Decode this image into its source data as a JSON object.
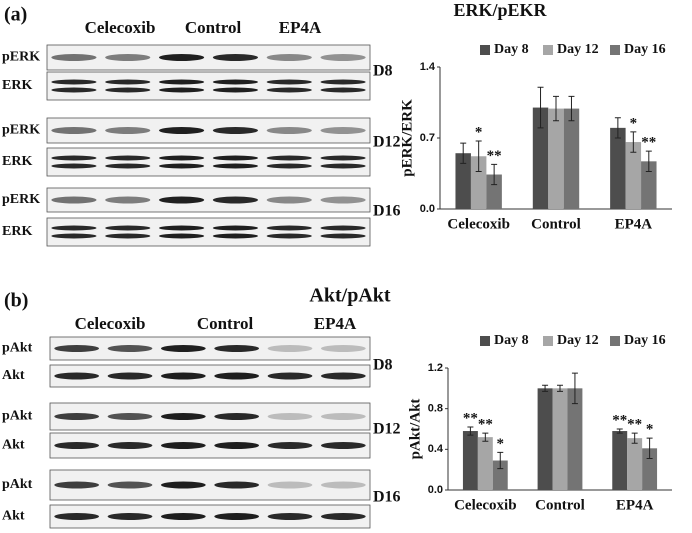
{
  "chart_data": [
    {
      "type": "bar",
      "ylabel": "pERK/ERK",
      "categories": [
        "Celecoxib",
        "Control",
        "EP4A"
      ],
      "series": [
        {
          "name": "Day 8",
          "color": "#4d4d4d",
          "values": [
            0.55,
            1.0,
            0.8
          ],
          "errors": [
            0.1,
            0.2,
            0.1
          ],
          "significance": [
            null,
            null,
            null
          ]
        },
        {
          "name": "Day 12",
          "color": "#a6a6a6",
          "values": [
            0.52,
            0.99,
            0.66
          ],
          "errors": [
            0.15,
            0.12,
            0.1
          ],
          "significance": [
            "*",
            null,
            "*"
          ]
        },
        {
          "name": "Day 16",
          "color": "#747474",
          "values": [
            0.34,
            0.99,
            0.47
          ],
          "errors": [
            0.1,
            0.12,
            0.1
          ],
          "significance": [
            "**",
            null,
            "**"
          ]
        }
      ],
      "ylim": [
        0,
        1.4
      ],
      "yticks": [
        {
          "value": 0,
          "label": "0.0"
        },
        0.7,
        1.4
      ],
      "legend": "top"
    },
    {
      "type": "bar",
      "ylabel": "pAkt/Akt",
      "categories": [
        "Celecoxib",
        "Control",
        "EP4A"
      ],
      "series": [
        {
          "name": "Day 8",
          "color": "#4d4d4d",
          "values": [
            0.58,
            1.0,
            0.58
          ],
          "errors": [
            0.04,
            0.03,
            0.02
          ],
          "significance": [
            "**",
            null,
            "**"
          ]
        },
        {
          "name": "Day 12",
          "color": "#a6a6a6",
          "values": [
            0.52,
            1.0,
            0.51
          ],
          "errors": [
            0.04,
            0.03,
            0.05
          ],
          "significance": [
            "**",
            null,
            "**"
          ]
        },
        {
          "name": "Day 16",
          "color": "#747474",
          "values": [
            0.29,
            1.0,
            0.41
          ],
          "errors": [
            0.08,
            0.15,
            0.1
          ],
          "significance": [
            "*",
            null,
            "*"
          ]
        }
      ],
      "ylim": [
        0,
        1.2
      ],
      "yticks": [
        {
          "value": 0,
          "label": "0.0"
        },
        0.4,
        0.8,
        1.2
      ],
      "legend": "top"
    }
  ],
  "panels": [
    {
      "label": "(a)",
      "heading": "ERK/pEKR",
      "groups": [
        "Celecoxib",
        "Control",
        "EP4A"
      ],
      "rows": [
        {
          "blots": [
            "pERK",
            "ERK"
          ],
          "day": "D8"
        },
        {
          "blots": [
            "pERK",
            "ERK"
          ],
          "day": "D12"
        },
        {
          "blots": [
            "pERK",
            "ERK"
          ],
          "day": "D16"
        }
      ]
    },
    {
      "label": "(b)",
      "heading": "Akt/pAkt",
      "groups": [
        "Celecoxib",
        "Control",
        "EP4A"
      ],
      "rows": [
        {
          "blots": [
            "pAkt",
            "Akt"
          ],
          "day": "D8"
        },
        {
          "blots": [
            "pAkt",
            "Akt"
          ],
          "day": "D12"
        },
        {
          "blots": [
            "pAkt",
            "Akt"
          ],
          "day": "D16"
        }
      ]
    }
  ]
}
